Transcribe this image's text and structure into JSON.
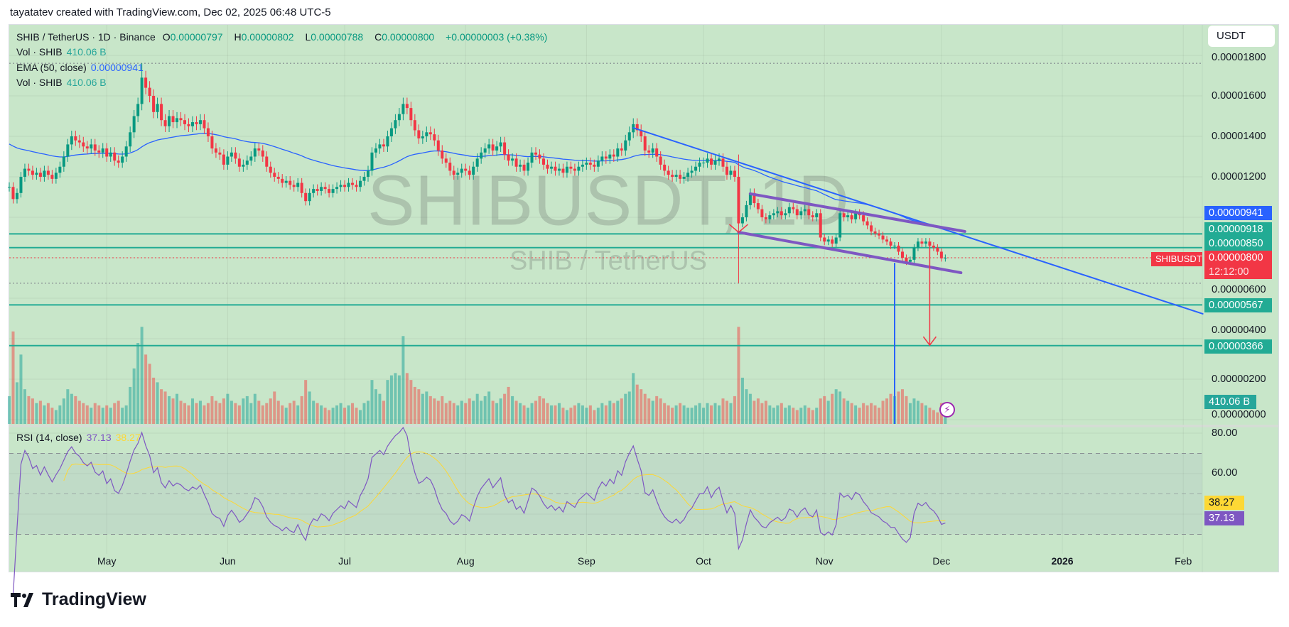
{
  "credit": "tayatatev created with TradingView.com, Dec 02, 2025 06:48 UTC-5",
  "legend": {
    "symbol": "SHIB / TetherUS · 1D · Binance",
    "o_label": "O",
    "o": "0.00000797",
    "h_label": "H",
    "h": "0.00000802",
    "l_label": "L",
    "l": "0.00000788",
    "c_label": "C",
    "c": "0.00000800",
    "change": "+0.00000003 (+0.38%)",
    "vol1_label": "Vol · SHIB",
    "vol1": "410.06 B",
    "ema_label": "EMA (50, close)",
    "ema": "0.00000941",
    "vol2_label": "Vol · SHIB",
    "vol2": "410.06 B",
    "rsi_label": "RSI (14, close)",
    "rsi": "37.13",
    "rsi_ma": "38.27"
  },
  "currency_button": "USDT",
  "watermark": {
    "title": "SHIBUSDT, 1D",
    "subtitle": "SHIB / TetherUS"
  },
  "price_axis": {
    "ticks": [
      "0.00001800",
      "0.00001600",
      "0.00001400",
      "0.00001200",
      "0.00000600",
      "0.00000400",
      "0.00000200",
      "0.00000000"
    ],
    "labels": {
      "ema": "0.00000941",
      "line1": "0.00000918",
      "line2": "0.00000850",
      "last": "0.00000800",
      "countdown": "12:12:00",
      "line3": "0.00000567",
      "line4": "0.00000366",
      "volume": "410.06 B",
      "symbol_tag": "SHIBUSDT"
    }
  },
  "rsi_axis": {
    "ticks": [
      "80.00",
      "60.00"
    ],
    "ma_label": "38.27",
    "rsi_label": "37.13"
  },
  "time_axis": [
    {
      "label": "May",
      "date": "2025-05-01"
    },
    {
      "label": "Jun",
      "date": "2025-06-01"
    },
    {
      "label": "Jul",
      "date": "2025-07-01"
    },
    {
      "label": "Aug",
      "date": "2025-08-01"
    },
    {
      "label": "Sep",
      "date": "2025-09-01"
    },
    {
      "label": "Oct",
      "date": "2025-10-01"
    },
    {
      "label": "Nov",
      "date": "2025-11-01"
    },
    {
      "label": "Dec",
      "date": "2025-12-01"
    },
    {
      "label": "2026",
      "date": "2026-01-01"
    },
    {
      "label": "Feb",
      "date": "2026-02-01"
    }
  ],
  "logo_text": "TradingView",
  "colors": {
    "background": "#c8e6c9",
    "up": "#089981",
    "down": "#f23645",
    "ema": "#2962ff",
    "levels": "#22ab94",
    "channel": "#7e57c2",
    "rsi": "#7e57c2",
    "rsi_ma": "#fdd835",
    "trend": "#2962ff",
    "arrow": "#f23645"
  },
  "chart_data": {
    "type": "candlestick",
    "interval": "1D",
    "x_range": [
      "2025-04-06",
      "2025-12-02"
    ],
    "x_axis_range": [
      "2025-04-06",
      "2026-02-06"
    ],
    "y_range": [
      0.0,
      1.98e-05
    ],
    "grid": true,
    "close": [
      1.15e-05,
      1.09e-05,
      1.12e-05,
      1.2e-05,
      1.24e-05,
      1.23e-05,
      1.21e-05,
      1.22e-05,
      1.2e-05,
      1.23e-05,
      1.21e-05,
      1.19e-05,
      1.22e-05,
      1.25e-05,
      1.3e-05,
      1.36e-05,
      1.4e-05,
      1.38e-05,
      1.37e-05,
      1.35e-05,
      1.34e-05,
      1.36e-05,
      1.33e-05,
      1.32e-05,
      1.34e-05,
      1.3e-05,
      1.32e-05,
      1.28e-05,
      1.27e-05,
      1.3e-05,
      1.35e-05,
      1.42e-05,
      1.5e-05,
      1.56e-05,
      1.69e-05,
      1.64e-05,
      1.6e-05,
      1.52e-05,
      1.56e-05,
      1.48e-05,
      1.45e-05,
      1.5e-05,
      1.47e-05,
      1.49e-05,
      1.48e-05,
      1.46e-05,
      1.45e-05,
      1.47e-05,
      1.46e-05,
      1.48e-05,
      1.44e-05,
      1.4e-05,
      1.34e-05,
      1.32e-05,
      1.31e-05,
      1.26e-05,
      1.3e-05,
      1.32e-05,
      1.29e-05,
      1.25e-05,
      1.26e-05,
      1.28e-05,
      1.3e-05,
      1.34e-05,
      1.33e-05,
      1.3e-05,
      1.25e-05,
      1.22e-05,
      1.2e-05,
      1.19e-05,
      1.17e-05,
      1.18e-05,
      1.16e-05,
      1.15e-05,
      1.17e-05,
      1.12e-05,
      1.08e-05,
      1.12e-05,
      1.14e-05,
      1.13e-05,
      1.15e-05,
      1.14e-05,
      1.12e-05,
      1.14e-05,
      1.15e-05,
      1.16e-05,
      1.15e-05,
      1.17e-05,
      1.16e-05,
      1.15e-05,
      1.18e-05,
      1.2e-05,
      1.23e-05,
      1.32e-05,
      1.34e-05,
      1.36e-05,
      1.35e-05,
      1.4e-05,
      1.44e-05,
      1.48e-05,
      1.51e-05,
      1.56e-05,
      1.54e-05,
      1.48e-05,
      1.43e-05,
      1.39e-05,
      1.4e-05,
      1.42e-05,
      1.41e-05,
      1.38e-05,
      1.33e-05,
      1.29e-05,
      1.27e-05,
      1.23e-05,
      1.21e-05,
      1.22e-05,
      1.24e-05,
      1.23e-05,
      1.21e-05,
      1.25e-05,
      1.29e-05,
      1.32e-05,
      1.34e-05,
      1.36e-05,
      1.33e-05,
      1.35e-05,
      1.37e-05,
      1.31e-05,
      1.28e-05,
      1.29e-05,
      1.25e-05,
      1.26e-05,
      1.23e-05,
      1.27e-05,
      1.32e-05,
      1.31e-05,
      1.29e-05,
      1.26e-05,
      1.24e-05,
      1.25e-05,
      1.23e-05,
      1.24e-05,
      1.22e-05,
      1.25e-05,
      1.24e-05,
      1.23e-05,
      1.25e-05,
      1.26e-05,
      1.27e-05,
      1.26e-05,
      1.25e-05,
      1.28e-05,
      1.3e-05,
      1.29e-05,
      1.31e-05,
      1.3e-05,
      1.34e-05,
      1.33e-05,
      1.38e-05,
      1.42e-05,
      1.46e-05,
      1.43e-05,
      1.4e-05,
      1.33e-05,
      1.32e-05,
      1.34e-05,
      1.3e-05,
      1.26e-05,
      1.23e-05,
      1.21e-05,
      1.2e-05,
      1.21e-05,
      1.19e-05,
      1.2e-05,
      1.22e-05,
      1.23e-05,
      1.25e-05,
      1.27e-05,
      1.27e-05,
      1.29e-05,
      1.26e-05,
      1.28e-05,
      1.29e-05,
      1.25e-05,
      1.21e-05,
      1.23e-05,
      1.2e-05,
      9.7e-06,
      1e-05,
      1.06e-05,
      1.12e-05,
      1.07e-05,
      1.04e-05,
      1e-05,
      9.9e-06,
      1.01e-05,
      1.02e-05,
      1.03e-05,
      1.01e-05,
      1.02e-05,
      1.05e-05,
      1.04e-05,
      1.01e-05,
      1.03e-05,
      1.04e-05,
      1.01e-05,
      1e-05,
      1.02e-05,
      9e-06,
      8.8e-06,
      8.9e-06,
      8.7e-06,
      9e-06,
      1.02e-05,
      1e-05,
      1.01e-05,
      9.9e-06,
      1.02e-05,
      1.01e-05,
      9.8e-06,
      9.6e-06,
      9.3e-06,
      9.2e-06,
      9.1e-06,
      8.9e-06,
      8.8e-06,
      8.6e-06,
      8.6e-06,
      8.3e-06,
      8e-06,
      7.8e-06,
      7.9e-06,
      8.5e-06,
      8.8e-06,
      8.7e-06,
      8.8e-06,
      8.6e-06,
      8.5e-06,
      8.3e-06,
      7.97e-06,
      8e-06
    ],
    "volume_b": [
      1200,
      4000,
      1800,
      3000,
      1500,
      1200,
      1100,
      900,
      1000,
      800,
      900,
      700,
      600,
      800,
      1100,
      1500,
      1300,
      1200,
      1000,
      900,
      800,
      700,
      900,
      800,
      700,
      800,
      700,
      900,
      1000,
      700,
      800,
      1600,
      2400,
      3500,
      4200,
      3000,
      2600,
      2000,
      1800,
      1500,
      1400,
      1200,
      1100,
      1300,
      1000,
      900,
      800,
      1100,
      900,
      1000,
      800,
      900,
      1200,
      1000,
      900,
      1100,
      1300,
      1000,
      900,
      800,
      1100,
      1200,
      900,
      1300,
      1000,
      800,
      900,
      1100,
      1400,
      1000,
      800,
      700,
      900,
      1000,
      800,
      1200,
      1900,
      1400,
      1000,
      900,
      800,
      700,
      600,
      700,
      800,
      900,
      700,
      800,
      900,
      700,
      600,
      900,
      1000,
      1900,
      1500,
      1300,
      1000,
      1900,
      2100,
      2200,
      2100,
      3800,
      2200,
      1900,
      1600,
      1500,
      1300,
      1400,
      1200,
      1100,
      1000,
      1200,
      900,
      1000,
      900,
      800,
      1000,
      900,
      1100,
      1000,
      1300,
      1000,
      1200,
      1400,
      1000,
      900,
      1100,
      1300,
      1600,
      1200,
      1000,
      900,
      800,
      700,
      900,
      1000,
      1200,
      1100,
      900,
      800,
      800,
      900,
      700,
      600,
      700,
      800,
      900,
      800,
      700,
      800,
      600,
      700,
      900,
      800,
      1000,
      900,
      1000,
      1100,
      1300,
      1400,
      2200,
      1700,
      1500,
      1300,
      1100,
      1000,
      1200,
      1100,
      900,
      800,
      700,
      800,
      900,
      800,
      700,
      700,
      800,
      900,
      700,
      900,
      800,
      900,
      800,
      1100,
      1000,
      900,
      1200,
      4200,
      2000,
      1500,
      1300,
      1000,
      1100,
      900,
      1000,
      800,
      700,
      800,
      900,
      700,
      800,
      700,
      600,
      700,
      800,
      700,
      600,
      700,
      1100,
      1200,
      1000,
      1300,
      1500,
      1400,
      1100,
      1000,
      900,
      800,
      700,
      900,
      800,
      900,
      800,
      700,
      1000,
      1100,
      1300,
      1200,
      1400,
      1500,
      1200,
      900,
      1100,
      1000,
      900,
      800,
      700,
      600,
      500,
      900,
      410.06
    ],
    "wick_extremes": [
      {
        "date": "2025-05-10",
        "high": 1.761e-05
      },
      {
        "date": "2025-10-10",
        "high": 1.31e-05,
        "low": 6.74e-06
      }
    ],
    "indicators": {
      "ema_period": 50,
      "rsi_period": 14,
      "rsi_ma_period": 14,
      "rsi_bands": [
        70,
        50,
        30
      ],
      "rsi_axis_range": [
        20,
        85
      ]
    },
    "horizontal_levels": [
      9.18e-06,
      8.5e-06,
      5.67e-06,
      3.66e-06
    ],
    "drawings": {
      "trendline": {
        "from": [
          "2025-09-13",
          1.442e-05
        ],
        "to": [
          "2026-02-06",
          5.23e-06
        ]
      },
      "channel_upper": {
        "from": [
          "2025-10-13",
          1.116e-05
        ],
        "to": [
          "2025-12-07",
          9.3e-06
        ]
      },
      "channel_lower": {
        "from": [
          "2025-10-10",
          9.26e-06
        ],
        "to": [
          "2025-12-06",
          7.26e-06
        ]
      },
      "target_arrow": {
        "date": "2025-11-28",
        "from": 8.67e-06,
        "to": 3.68e-06
      },
      "vertical_marker": {
        "date": "2025-11-19",
        "from": 7.75e-06,
        "to": 0.0
      },
      "v_marker": {
        "date": "2025-10-10",
        "price": 9.26e-06
      }
    }
  }
}
